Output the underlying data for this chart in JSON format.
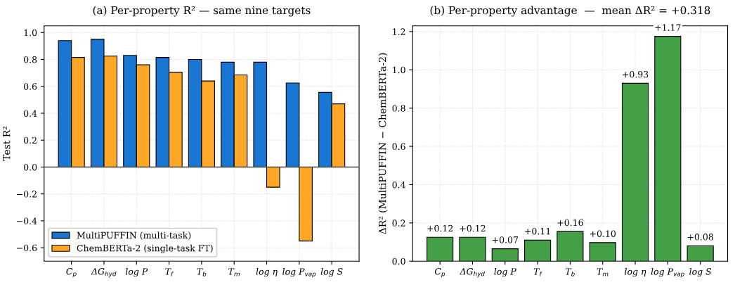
{
  "chart_data": [
    {
      "type": "bar",
      "title": "(a) Per-property R² — same nine targets",
      "ylabel": "Test R²",
      "categories": [
        "C$_{p}$",
        "ΔG$_{hyd}$",
        "log P",
        "T$_{f}$",
        "T$_{b}$",
        "T$_{m}$",
        "log η",
        "log P$_{vap}$",
        "log S"
      ],
      "series": [
        {
          "name": "MultiPUFFIN (multi-task)",
          "color": "#1976d2",
          "values": [
            0.94,
            0.95,
            0.83,
            0.815,
            0.8,
            0.78,
            0.78,
            0.625,
            0.555
          ]
        },
        {
          "name": "ChemBERTa-2 (single-task FT)",
          "color": "#ffa726",
          "values": [
            0.815,
            0.825,
            0.76,
            0.705,
            0.64,
            0.685,
            -0.15,
            -0.55,
            0.47
          ]
        }
      ],
      "ylim": [
        -0.7,
        1.05
      ],
      "yticks": [
        {
          "value": -0.6,
          "label": "−0.6"
        },
        {
          "value": -0.4,
          "label": "−0.4"
        },
        {
          "value": -0.2,
          "label": "−0.2"
        },
        {
          "value": 0,
          "label": "0.0"
        },
        0.2,
        0.4,
        0.6,
        0.8,
        {
          "value": 1,
          "label": "1.0"
        }
      ],
      "ref_lines": [
        {
          "axis": "y",
          "value": 0,
          "color": "#444444"
        }
      ],
      "grid": true,
      "legend": "bottom left"
    },
    {
      "type": "bar",
      "title": "(b) Per-property advantage  —  mean ΔR² = +0.318",
      "ylabel": "ΔR² (MultiPUFFIN − ChemBERTa-2)",
      "categories": [
        "C$_{p}$",
        "ΔG$_{hyd}$",
        "log P",
        "T$_{f}$",
        "T$_{b}$",
        "T$_{m}$",
        "log η",
        "log P$_{vap}$",
        "log S"
      ],
      "series": [
        {
          "color": "#43a047",
          "values": [
            0.125,
            0.125,
            0.065,
            0.11,
            0.155,
            0.097,
            0.93,
            1.175,
            0.08
          ],
          "value_labels": [
            "+0.12",
            "+0.12",
            "+0.07",
            "+0.11",
            "+0.16",
            "+0.10",
            "+0.93",
            "+1.17",
            "+0.08"
          ]
        }
      ],
      "ylim": [
        0,
        1.23
      ],
      "yticks": [
        {
          "value": 0,
          "label": "0.0"
        },
        0.2,
        0.4,
        0.6,
        0.8,
        {
          "value": 1,
          "label": "1.0"
        },
        1.2
      ],
      "grid": true
    }
  ]
}
